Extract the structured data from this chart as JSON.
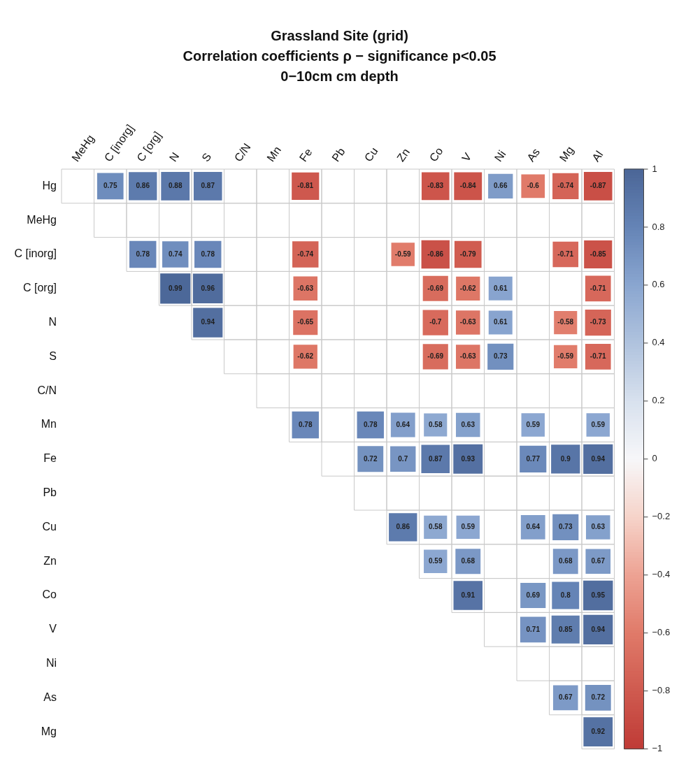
{
  "chart_data": {
    "type": "heatmap",
    "title": "Grassland Site (grid)\nCorrelation coefficients ρ − significance p<0.05\n0−10cm cm depth",
    "categories": [
      "MeHg",
      "C [inorg]",
      "C [org]",
      "N",
      "S",
      "C/N",
      "Mn",
      "Fe",
      "Pb",
      "Cu",
      "Zn",
      "Co",
      "V",
      "Ni",
      "As",
      "Mg",
      "Al"
    ],
    "y_categories": [
      "Hg",
      "MeHg",
      "C [inorg]",
      "C [org]",
      "N",
      "S",
      "C/N",
      "Mn",
      "Fe",
      "Pb",
      "Cu",
      "Zn",
      "Co",
      "V",
      "Ni",
      "As",
      "Mg"
    ],
    "cells": [
      [
        null,
        0.75,
        0.86,
        0.88,
        0.87,
        null,
        null,
        -0.81,
        null,
        null,
        null,
        -0.83,
        -0.84,
        0.66,
        -0.6,
        -0.74,
        -0.87
      ],
      [
        null,
        null,
        null,
        null,
        null,
        null,
        null,
        null,
        null,
        null,
        null,
        null,
        null,
        null,
        null,
        null,
        null
      ],
      [
        null,
        null,
        0.78,
        0.74,
        0.78,
        null,
        null,
        -0.74,
        null,
        null,
        -0.59,
        -0.86,
        -0.79,
        null,
        null,
        -0.71,
        -0.85
      ],
      [
        null,
        null,
        null,
        0.99,
        0.96,
        null,
        null,
        -0.63,
        null,
        null,
        null,
        -0.69,
        -0.62,
        0.61,
        null,
        null,
        -0.71
      ],
      [
        null,
        null,
        null,
        null,
        0.94,
        null,
        null,
        -0.65,
        null,
        null,
        null,
        -0.7,
        -0.63,
        0.61,
        null,
        -0.58,
        -0.73
      ],
      [
        null,
        null,
        null,
        null,
        null,
        null,
        null,
        -0.62,
        null,
        null,
        null,
        -0.69,
        -0.63,
        0.73,
        null,
        -0.59,
        -0.71
      ],
      [
        null,
        null,
        null,
        null,
        null,
        null,
        null,
        null,
        null,
        null,
        null,
        null,
        null,
        null,
        null,
        null,
        null
      ],
      [
        null,
        null,
        null,
        null,
        null,
        null,
        null,
        0.78,
        null,
        0.78,
        0.64,
        0.58,
        0.63,
        null,
        0.59,
        null,
        0.59
      ],
      [
        null,
        null,
        null,
        null,
        null,
        null,
        null,
        null,
        null,
        0.72,
        0.7,
        0.87,
        0.93,
        null,
        0.77,
        0.9,
        0.94
      ],
      [
        null,
        null,
        null,
        null,
        null,
        null,
        null,
        null,
        null,
        null,
        null,
        null,
        null,
        null,
        null,
        null,
        null
      ],
      [
        null,
        null,
        null,
        null,
        null,
        null,
        null,
        null,
        null,
        null,
        0.86,
        0.58,
        0.59,
        null,
        0.64,
        0.73,
        0.63
      ],
      [
        null,
        null,
        null,
        null,
        null,
        null,
        null,
        null,
        null,
        null,
        null,
        0.59,
        0.68,
        null,
        null,
        0.68,
        0.67
      ],
      [
        null,
        null,
        null,
        null,
        null,
        null,
        null,
        null,
        null,
        null,
        null,
        null,
        0.91,
        null,
        0.69,
        0.8,
        0.95
      ],
      [
        null,
        null,
        null,
        null,
        null,
        null,
        null,
        null,
        null,
        null,
        null,
        null,
        null,
        null,
        0.71,
        0.85,
        0.94
      ],
      [
        null,
        null,
        null,
        null,
        null,
        null,
        null,
        null,
        null,
        null,
        null,
        null,
        null,
        null,
        null,
        null,
        null
      ],
      [
        null,
        null,
        null,
        null,
        null,
        null,
        null,
        null,
        null,
        null,
        null,
        null,
        null,
        null,
        null,
        0.67,
        0.72
      ],
      [
        null,
        null,
        null,
        null,
        null,
        null,
        null,
        null,
        null,
        null,
        null,
        null,
        null,
        null,
        null,
        null,
        0.92
      ]
    ],
    "clim": [
      -1,
      1
    ],
    "cticks": [
      1,
      0.8,
      0.6,
      0.4,
      0.2,
      0,
      {
        "value": -0.2,
        "label": "−0.2"
      },
      {
        "value": -0.4,
        "label": "−0.4"
      },
      {
        "value": -0.6,
        "label": "−0.6"
      },
      {
        "value": -0.8,
        "label": "−0.8"
      },
      {
        "value": -1,
        "label": "−1"
      }
    ],
    "data_labels": true
  }
}
